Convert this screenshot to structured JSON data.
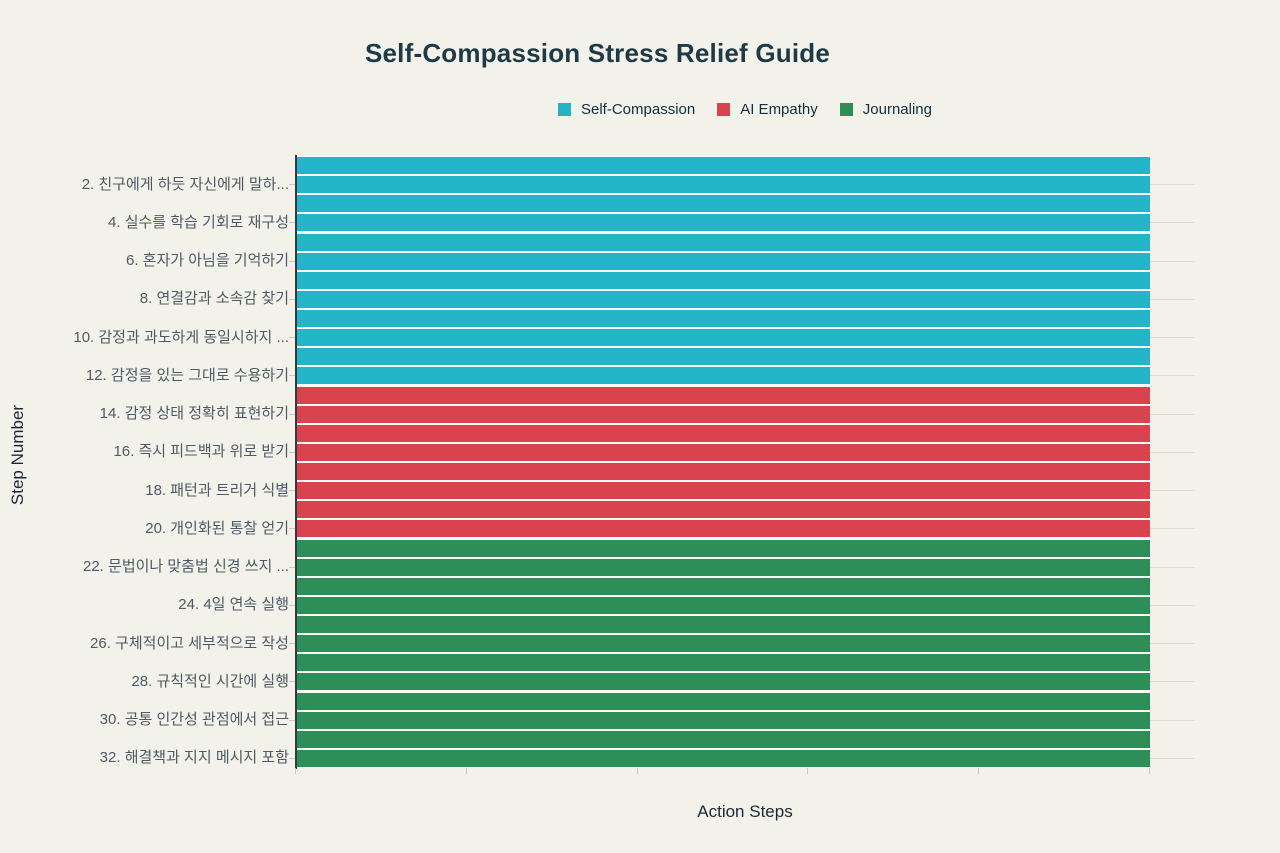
{
  "page": {
    "background_color": "#f2f1ea"
  },
  "chart_data": {
    "type": "bar",
    "orientation": "horizontal",
    "title": "Self-Compassion Stress Relief Guide",
    "xlabel": "Action Steps",
    "ylabel": "Step Number",
    "legend_position": "top-center",
    "legend": [
      {
        "name": "Self-Compassion",
        "color": "#23b4c8"
      },
      {
        "name": "AI Empathy",
        "color": "#d8434e"
      },
      {
        "name": "Journaling",
        "color": "#2e8e58"
      }
    ],
    "x_axis": {
      "ticks": [
        0,
        0.2,
        0.4,
        0.6,
        0.8,
        1.0
      ],
      "tick_labels_visible": false,
      "range": [
        0,
        1.053
      ]
    },
    "y_axis": {
      "steps_total": 32,
      "labeled_every": 2,
      "grid_at_labeled_steps": true
    },
    "note": "all 32 bars have equal full length (value 1.0); only even steps carry tick labels",
    "bars": [
      {
        "step": 1,
        "group": "Self-Compassion",
        "value": 1.0
      },
      {
        "step": 2,
        "group": "Self-Compassion",
        "value": 1.0,
        "label": "2. 친구에게 하듯 자신에게 말하..."
      },
      {
        "step": 3,
        "group": "Self-Compassion",
        "value": 1.0
      },
      {
        "step": 4,
        "group": "Self-Compassion",
        "value": 1.0,
        "label": "4. 실수를 학습 기회로 재구성"
      },
      {
        "step": 5,
        "group": "Self-Compassion",
        "value": 1.0
      },
      {
        "step": 6,
        "group": "Self-Compassion",
        "value": 1.0,
        "label": "6. 혼자가 아님을 기억하기"
      },
      {
        "step": 7,
        "group": "Self-Compassion",
        "value": 1.0
      },
      {
        "step": 8,
        "group": "Self-Compassion",
        "value": 1.0,
        "label": "8. 연결감과 소속감 찾기"
      },
      {
        "step": 9,
        "group": "Self-Compassion",
        "value": 1.0
      },
      {
        "step": 10,
        "group": "Self-Compassion",
        "value": 1.0,
        "label": "10. 감정과 과도하게 동일시하지 ..."
      },
      {
        "step": 11,
        "group": "Self-Compassion",
        "value": 1.0
      },
      {
        "step": 12,
        "group": "Self-Compassion",
        "value": 1.0,
        "label": "12. 감정을 있는 그대로 수용하기"
      },
      {
        "step": 13,
        "group": "AI Empathy",
        "value": 1.0
      },
      {
        "step": 14,
        "group": "AI Empathy",
        "value": 1.0,
        "label": "14. 감정 상태 정확히 표현하기"
      },
      {
        "step": 15,
        "group": "AI Empathy",
        "value": 1.0
      },
      {
        "step": 16,
        "group": "AI Empathy",
        "value": 1.0,
        "label": "16. 즉시 피드백과 위로 받기"
      },
      {
        "step": 17,
        "group": "AI Empathy",
        "value": 1.0
      },
      {
        "step": 18,
        "group": "AI Empathy",
        "value": 1.0,
        "label": "18. 패턴과 트리거 식별"
      },
      {
        "step": 19,
        "group": "AI Empathy",
        "value": 1.0
      },
      {
        "step": 20,
        "group": "AI Empathy",
        "value": 1.0,
        "label": "20. 개인화된 통찰 얻기"
      },
      {
        "step": 21,
        "group": "Journaling",
        "value": 1.0
      },
      {
        "step": 22,
        "group": "Journaling",
        "value": 1.0,
        "label": "22. 문법이나 맞춤법 신경 쓰지 ..."
      },
      {
        "step": 23,
        "group": "Journaling",
        "value": 1.0
      },
      {
        "step": 24,
        "group": "Journaling",
        "value": 1.0,
        "label": "24. 4일 연속 실행"
      },
      {
        "step": 25,
        "group": "Journaling",
        "value": 1.0
      },
      {
        "step": 26,
        "group": "Journaling",
        "value": 1.0,
        "label": "26. 구체적이고 세부적으로 작성"
      },
      {
        "step": 27,
        "group": "Journaling",
        "value": 1.0
      },
      {
        "step": 28,
        "group": "Journaling",
        "value": 1.0,
        "label": "28. 규칙적인 시간에 실행"
      },
      {
        "step": 29,
        "group": "Journaling",
        "value": 1.0
      },
      {
        "step": 30,
        "group": "Journaling",
        "value": 1.0,
        "label": "30. 공통 인간성 관점에서 접근"
      },
      {
        "step": 31,
        "group": "Journaling",
        "value": 1.0
      },
      {
        "step": 32,
        "group": "Journaling",
        "value": 1.0,
        "label": "32. 해결책과 지지 메시지 포함"
      }
    ]
  }
}
